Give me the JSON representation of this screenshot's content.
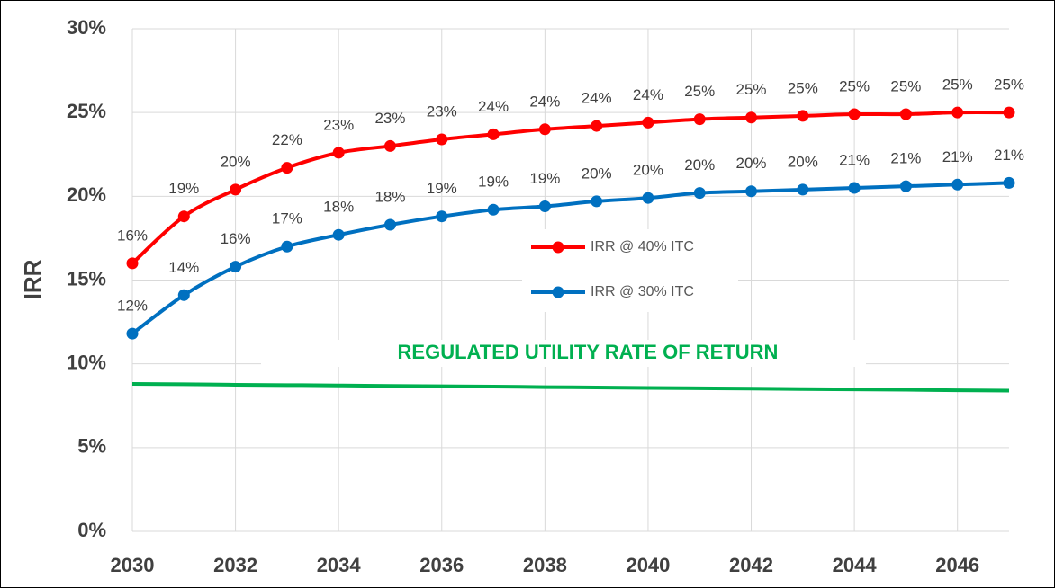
{
  "chart_data": {
    "type": "line",
    "y_label": "IRR",
    "annotation": "REGULATED UTILITY RATE OF RETURN",
    "x": [
      2030,
      2031,
      2032,
      2033,
      2034,
      2035,
      2036,
      2037,
      2038,
      2039,
      2040,
      2041,
      2042,
      2043,
      2044,
      2045,
      2046,
      2047
    ],
    "xlim": [
      2030,
      2047
    ],
    "xticks": [
      2030,
      2032,
      2034,
      2036,
      2038,
      2040,
      2042,
      2044,
      2046
    ],
    "ylim": [
      0,
      30
    ],
    "yticks": [
      {
        "value": 0,
        "label": "0%"
      },
      {
        "value": 5,
        "label": "5%"
      },
      {
        "value": 10,
        "label": "10%"
      },
      {
        "value": 15,
        "label": "15%"
      },
      {
        "value": 20,
        "label": "20%"
      },
      {
        "value": 25,
        "label": "25%"
      },
      {
        "value": 30,
        "label": "30%"
      }
    ],
    "grid": true,
    "series": [
      {
        "name": "IRR  @ 40% ITC",
        "color": "#ff0000",
        "values": [
          16.0,
          18.8,
          20.4,
          21.7,
          22.6,
          23.0,
          23.4,
          23.7,
          24.0,
          24.2,
          24.4,
          24.6,
          24.7,
          24.8,
          24.9,
          24.9,
          25.0,
          25.0
        ],
        "value_labels": [
          "16%",
          "19%",
          "20%",
          "22%",
          "23%",
          "23%",
          "23%",
          "24%",
          "24%",
          "24%",
          "24%",
          "25%",
          "25%",
          "25%",
          "25%",
          "25%",
          "25%",
          "25%"
        ]
      },
      {
        "name": "IRR  @ 30% ITC",
        "color": "#0070c0",
        "values": [
          11.8,
          14.1,
          15.8,
          17.0,
          17.7,
          18.3,
          18.8,
          19.2,
          19.4,
          19.7,
          19.9,
          20.2,
          20.3,
          20.4,
          20.5,
          20.6,
          20.7,
          20.8
        ],
        "value_labels": [
          "12%",
          "14%",
          "16%",
          "17%",
          "18%",
          "18%",
          "19%",
          "19%",
          "19%",
          "20%",
          "20%",
          "20%",
          "20%",
          "20%",
          "21%",
          "21%",
          "21%",
          "21%"
        ]
      },
      {
        "color": "#00b050",
        "values": [
          8.8,
          8.78,
          8.75,
          8.73,
          8.71,
          8.68,
          8.66,
          8.64,
          8.61,
          8.59,
          8.56,
          8.54,
          8.52,
          8.49,
          8.47,
          8.45,
          8.42,
          8.4
        ]
      }
    ]
  }
}
